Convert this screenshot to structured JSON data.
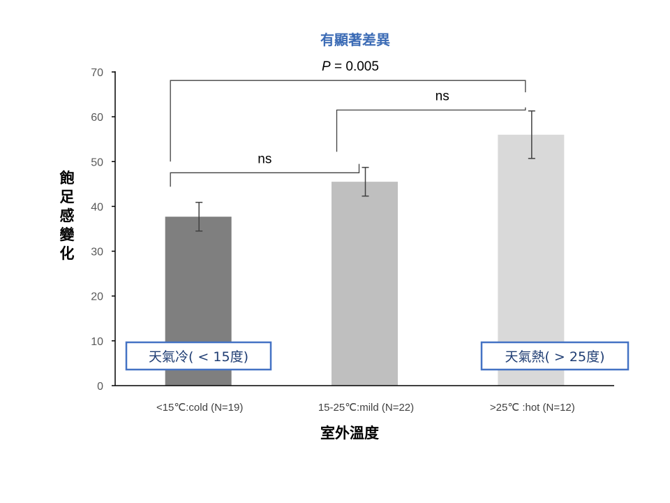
{
  "chart_data": {
    "type": "bar",
    "title": "有顯著差異",
    "xlabel": "室外溫度",
    "ylabel": "飽足感變化",
    "ylim": [
      0,
      70
    ],
    "yticks": [
      "0",
      "10",
      "20",
      "30",
      "40",
      "50",
      "60",
      "70"
    ],
    "categories": [
      "<15℃:cold (N=19)",
      "15-25℃:mild (N=22)",
      ">25℃ :hot (N=12)"
    ],
    "values": [
      37.7,
      45.5,
      56.0
    ],
    "error": [
      3.2,
      3.2,
      5.3
    ],
    "colors": [
      "#7f7f7f",
      "#bfbfbf",
      "#d9d9d9"
    ],
    "comparisons": [
      {
        "from": 0,
        "to": 2,
        "label_italic": "P",
        "label_rest": " = 0.005",
        "level": 68.1
      },
      {
        "from": 1,
        "to": 2,
        "label": "ns",
        "level": 61.5
      },
      {
        "from": 0,
        "to": 1,
        "label": "ns",
        "level": 47.5
      }
    ],
    "annotations": [
      {
        "text": "天氣冷( < 15度)",
        "category": 0
      },
      {
        "text": "天氣熱( > 25度)",
        "category": 2
      }
    ],
    "grid": false,
    "legend": "none"
  }
}
